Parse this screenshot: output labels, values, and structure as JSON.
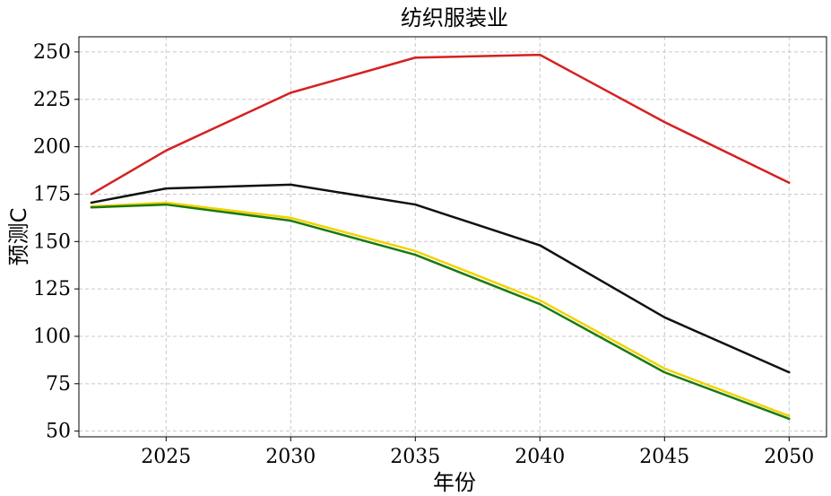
{
  "chart_data": {
    "type": "line",
    "title": "纺织服装业",
    "xlabel": "年份",
    "ylabel": "预测C",
    "xlim": [
      2021.5,
      2051.5
    ],
    "ylim": [
      47,
      258
    ],
    "x_ticks": [
      2025,
      2030,
      2035,
      2040,
      2045,
      2050
    ],
    "y_ticks": [
      50,
      75,
      100,
      125,
      150,
      175,
      200,
      225,
      250
    ],
    "grid": true,
    "series": [
      {
        "color": "#d62020",
        "points": [
          [
            2022,
            175
          ],
          [
            2025,
            198
          ],
          [
            2030,
            228.5
          ],
          [
            2035,
            247
          ],
          [
            2040,
            248.5
          ],
          [
            2045,
            213
          ],
          [
            2050,
            181
          ]
        ]
      },
      {
        "color": "#111111",
        "points": [
          [
            2022,
            170.5
          ],
          [
            2025,
            178
          ],
          [
            2030,
            180
          ],
          [
            2035,
            169.5
          ],
          [
            2040,
            148
          ],
          [
            2045,
            110
          ],
          [
            2050,
            81
          ]
        ]
      },
      {
        "color": "#f2d200",
        "points": [
          [
            2022,
            168.5
          ],
          [
            2025,
            170.5
          ],
          [
            2030,
            162.5
          ],
          [
            2035,
            145
          ],
          [
            2040,
            119
          ],
          [
            2045,
            83
          ],
          [
            2050,
            58
          ]
        ]
      },
      {
        "color": "#1a7a10",
        "points": [
          [
            2022,
            168
          ],
          [
            2025,
            169.5
          ],
          [
            2030,
            161
          ],
          [
            2035,
            143
          ],
          [
            2040,
            117
          ],
          [
            2045,
            81
          ],
          [
            2050,
            56.5
          ]
        ]
      }
    ]
  }
}
